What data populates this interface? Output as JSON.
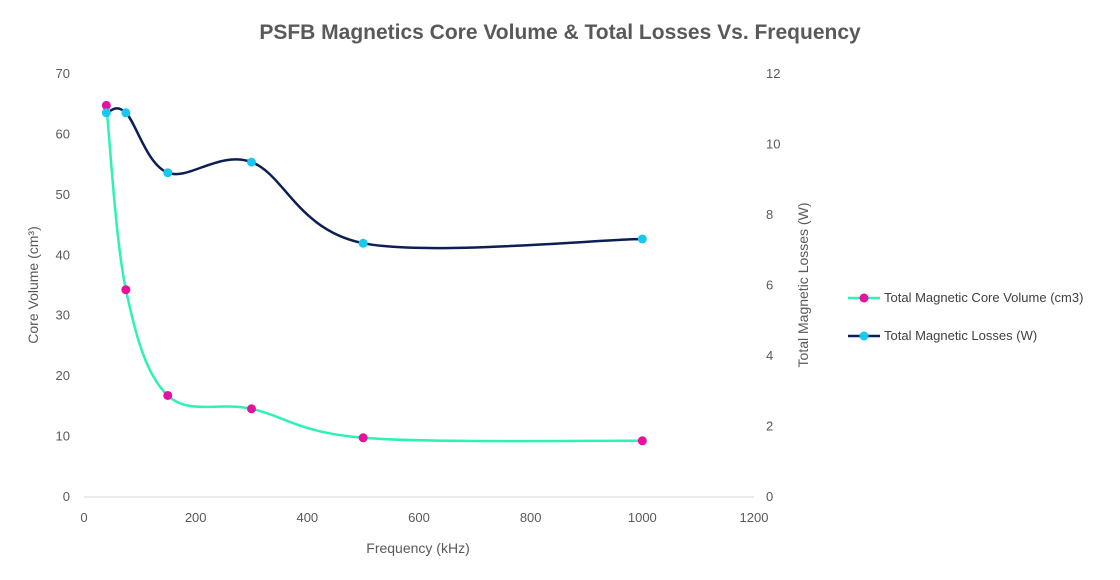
{
  "chart_data": {
    "type": "line",
    "title": "PSFB Magnetics Core Volume & Total Losses Vs. Frequency",
    "xlabel": "Frequency (kHz)",
    "ylabel": "Core Volume (cm³)",
    "y2label": "Total Magnetic Losses (W)",
    "xlim": [
      0,
      1200
    ],
    "ylim": [
      0,
      70
    ],
    "y2lim": [
      0,
      12
    ],
    "x_ticks": [
      "0",
      "200",
      "400",
      "600",
      "800",
      "1000",
      "1200"
    ],
    "y_ticks": [
      "0",
      "10",
      "20",
      "30",
      "40",
      "50",
      "60",
      "70"
    ],
    "y2_ticks": [
      "0",
      "2",
      "4",
      "6",
      "8",
      "10",
      "12"
    ],
    "grid": false,
    "legend_position": "right",
    "series": [
      {
        "name": "Total Magnetic Core Volume (cm3)",
        "axis": "left",
        "line_color": "#2EF2B5",
        "marker_color": "#E6119E",
        "x": [
          40,
          75,
          150,
          300,
          500,
          1000
        ],
        "y": [
          64.8,
          34.3,
          16.8,
          14.6,
          9.8,
          9.3
        ]
      },
      {
        "name": "Total Magnetic Losses (W)",
        "axis": "right",
        "line_color": "#0C1F55",
        "marker_color": "#17C9F0",
        "x": [
          40,
          75,
          150,
          300,
          500,
          1000
        ],
        "y": [
          10.9,
          10.9,
          9.2,
          9.5,
          7.2,
          7.32
        ]
      }
    ]
  }
}
